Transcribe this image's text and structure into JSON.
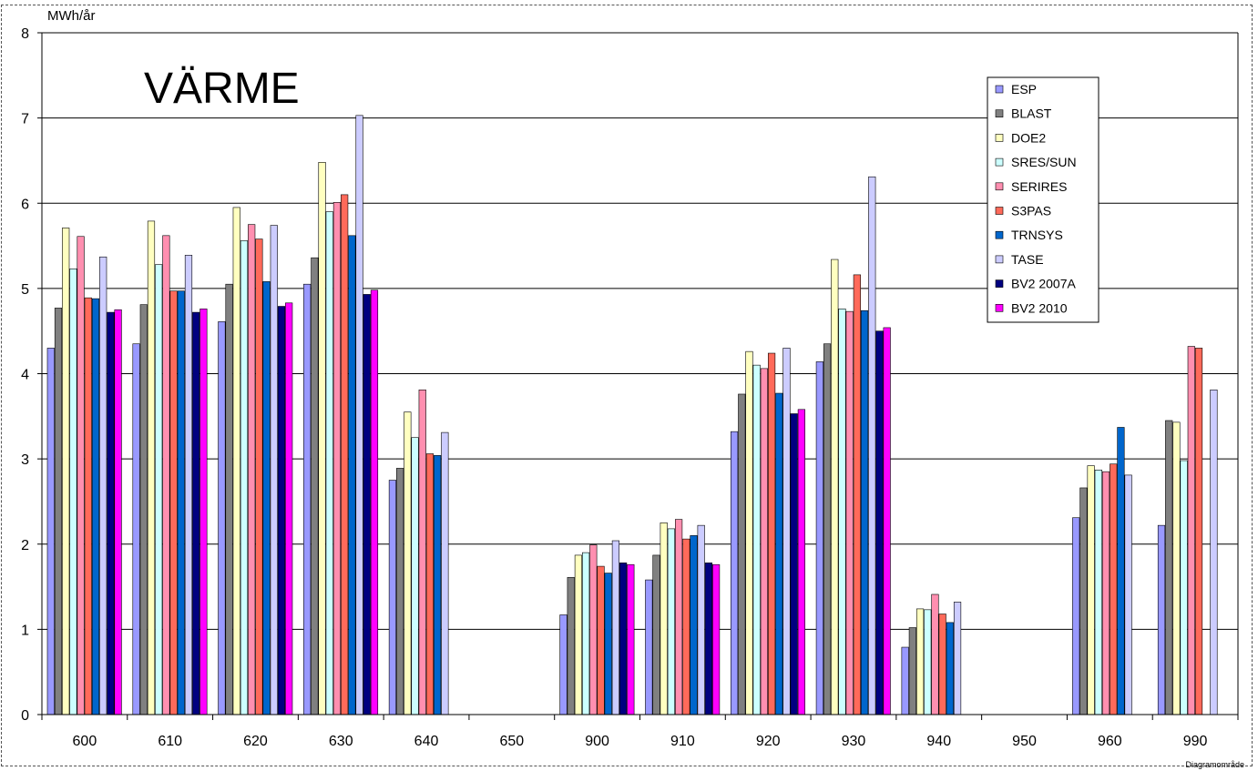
{
  "chart_data": {
    "type": "bar",
    "title": "VÄRME",
    "ylabel": "MWh/år",
    "xlabel": "",
    "ylim": [
      0,
      8
    ],
    "yticks": [
      0,
      1,
      2,
      3,
      4,
      5,
      6,
      7,
      8
    ],
    "grid": true,
    "legend_position": "top-right",
    "footer_label": "Diagramområde",
    "categories": [
      "600",
      "610",
      "620",
      "630",
      "640",
      "650",
      "900",
      "910",
      "920",
      "930",
      "940",
      "950",
      "960",
      "990"
    ],
    "series": [
      {
        "name": "ESP",
        "color": "#9999ff",
        "values": [
          4.3,
          4.35,
          4.61,
          5.05,
          2.75,
          null,
          1.17,
          1.58,
          3.32,
          4.14,
          0.79,
          null,
          2.31,
          2.22
        ]
      },
      {
        "name": "BLAST",
        "color": "#808080",
        "values": [
          4.77,
          4.81,
          5.05,
          5.36,
          2.89,
          null,
          1.61,
          1.87,
          3.76,
          4.35,
          1.02,
          null,
          2.66,
          3.45
        ]
      },
      {
        "name": "DOE2",
        "color": "#ffffc0",
        "values": [
          5.71,
          5.79,
          5.95,
          6.48,
          3.55,
          null,
          1.87,
          2.25,
          4.26,
          5.34,
          1.24,
          null,
          2.92,
          3.43
        ]
      },
      {
        "name": "SRES/SUN",
        "color": "#ccffff",
        "values": [
          5.23,
          5.28,
          5.56,
          5.9,
          3.25,
          null,
          1.9,
          2.18,
          4.1,
          4.76,
          1.23,
          null,
          2.87,
          2.98
        ]
      },
      {
        "name": "SERIRES",
        "color": "#ff8fb0",
        "values": [
          5.61,
          5.62,
          5.75,
          6.01,
          3.81,
          null,
          1.99,
          2.29,
          4.06,
          4.73,
          1.41,
          null,
          2.85,
          4.32
        ]
      },
      {
        "name": "S3PAS",
        "color": "#ff6a5a",
        "values": [
          4.89,
          4.97,
          5.58,
          6.1,
          3.06,
          null,
          1.74,
          2.06,
          4.24,
          5.16,
          1.18,
          null,
          2.94,
          4.3
        ]
      },
      {
        "name": "TRNSYS",
        "color": "#0066cc",
        "values": [
          4.88,
          4.97,
          5.08,
          5.62,
          3.04,
          null,
          1.66,
          2.1,
          3.77,
          4.74,
          1.08,
          null,
          3.37,
          null
        ]
      },
      {
        "name": "TASE",
        "color": "#ccccff",
        "values": [
          5.37,
          5.39,
          5.74,
          7.03,
          3.31,
          null,
          2.04,
          2.22,
          4.3,
          6.31,
          1.32,
          null,
          2.81,
          3.81
        ]
      },
      {
        "name": "BV2 2007A",
        "color": "#000080",
        "values": [
          4.72,
          4.72,
          4.79,
          4.93,
          null,
          null,
          1.78,
          1.78,
          3.53,
          4.5,
          null,
          null,
          null,
          null
        ]
      },
      {
        "name": "BV2 2010",
        "color": "#ff00ff",
        "values": [
          4.75,
          4.76,
          4.83,
          4.98,
          null,
          null,
          1.76,
          1.76,
          3.58,
          4.54,
          null,
          null,
          null,
          null
        ]
      }
    ]
  }
}
